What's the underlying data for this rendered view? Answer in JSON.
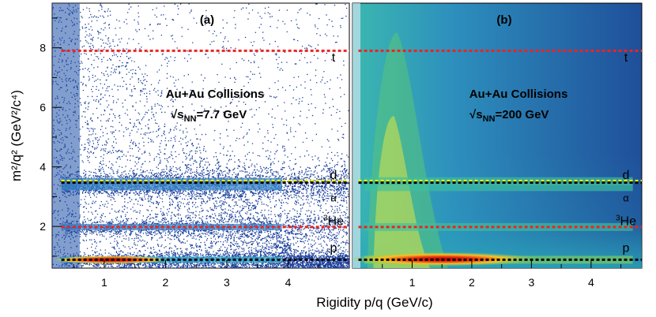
{
  "chart_data": {
    "type": "heatmap",
    "ylabel": "m²/q² (GeV²/c⁴)",
    "xlabel": "Rigidity p/q (GeV/c)",
    "ylim": [
      0.6,
      9.5
    ],
    "y_ticks": [
      2,
      4,
      6,
      8
    ],
    "panels": [
      {
        "label": "(a)",
        "title": "Au+Au Collisions",
        "energy_prefix": "√s",
        "energy_subscript": "NN",
        "energy_value": "=7.7 GeV",
        "xlim": [
          0.15,
          5.0
        ],
        "x_ticks": [
          1,
          2,
          3,
          4
        ],
        "style": "scatter-density"
      },
      {
        "label": "(b)",
        "title": "Au+Au Collisions",
        "energy_prefix": "√s",
        "energy_subscript": "NN",
        "energy_value": "=200 GeV",
        "xlim": [
          0.0,
          4.85
        ],
        "x_ticks": [
          1,
          2,
          3,
          4
        ],
        "style": "smooth-heatmap"
      }
    ],
    "cut_lines": [
      {
        "y": 7.9,
        "color": "#ee2222"
      },
      {
        "y": 3.53,
        "color": "#f0f000"
      },
      {
        "y": 3.47,
        "color": "#000000"
      },
      {
        "y": 1.98,
        "color": "#ee2222"
      },
      {
        "y": 0.88,
        "color": "#000000"
      }
    ],
    "species": [
      {
        "name": "t",
        "y": 7.7
      },
      {
        "name": "d",
        "y": 3.75
      },
      {
        "name": "α",
        "y": 3.0
      },
      {
        "name": "He",
        "superscript": "3",
        "y": 2.2
      },
      {
        "name": "p",
        "y": 1.3
      }
    ],
    "bands": [
      {
        "y": 0.88,
        "width": 0.07
      },
      {
        "y": 3.52,
        "width": 0.12
      },
      {
        "y": 3.32,
        "width": 0.1
      },
      {
        "y": 1.98,
        "width": 0.09
      }
    ]
  }
}
